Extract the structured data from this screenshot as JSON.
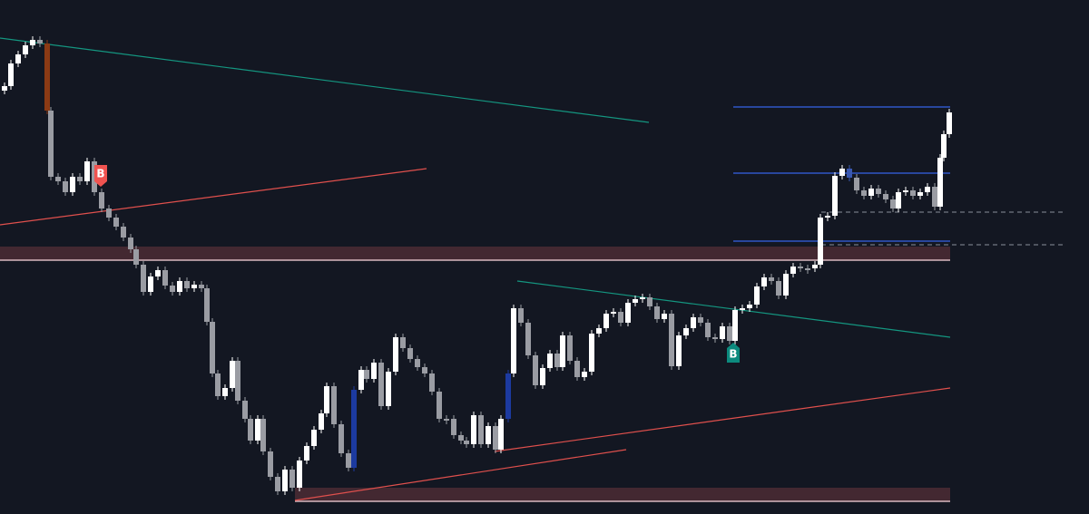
{
  "markers": [
    {
      "label": "B"
    },
    {
      "label": "B"
    }
  ]
}
